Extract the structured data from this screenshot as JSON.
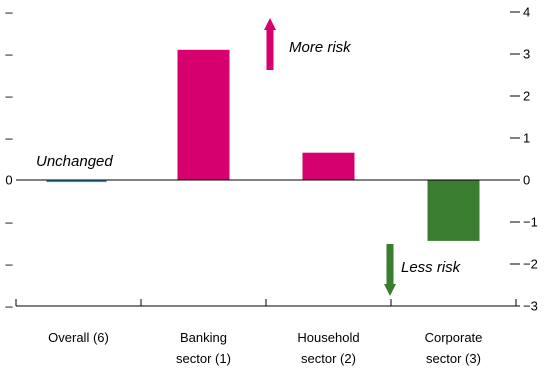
{
  "chart_data": {
    "type": "bar",
    "categories": [
      [
        "Overall (6)"
      ],
      [
        "Banking",
        "sector (1)"
      ],
      [
        "Household",
        "sector (2)"
      ],
      [
        "Corporate",
        "sector (3)"
      ]
    ],
    "values": [
      -0.05,
      3.1,
      0.65,
      -1.45
    ],
    "colors": [
      "#2a8fb8",
      "#d6006f",
      "#d6006f",
      "#3b7d2f"
    ],
    "ylim": [
      -3,
      4
    ],
    "yticks": [
      4,
      3,
      2,
      1,
      0,
      -1,
      -2,
      -3
    ],
    "ytick_labels": [
      "4",
      "3",
      "2",
      "1",
      "0",
      "−1",
      "−2",
      "−3"
    ],
    "left_tick_labels": [
      "–",
      "–",
      "–",
      "–",
      "0",
      "–",
      "–",
      "–"
    ],
    "annotations": {
      "up": "More risk",
      "down": "Less risk",
      "flat": "Unchanged"
    },
    "arrow_colors": {
      "up": "#d6006f",
      "down": "#3b7d2f"
    },
    "grid": false
  }
}
